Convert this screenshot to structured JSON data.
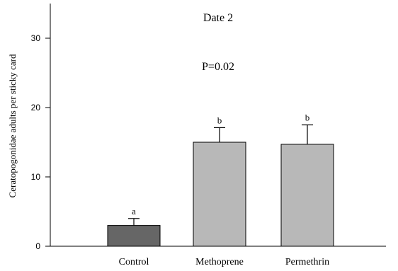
{
  "chart_data": {
    "type": "bar",
    "title": "Date 2",
    "annotation": "P=0.02",
    "xlabel": "",
    "ylabel": "Ceratopogonidae adults per sticky card",
    "ylim": [
      0,
      35
    ],
    "yticks": [
      0,
      10,
      20,
      30
    ],
    "categories": [
      "Control",
      "Methoprene",
      "Permethrin"
    ],
    "values": [
      3.0,
      15.0,
      14.7
    ],
    "error_upper": [
      1.0,
      2.1,
      2.8
    ],
    "significance_letters": [
      "a",
      "b",
      "b"
    ],
    "bar_colors": [
      "#666666",
      "#b8b8b8",
      "#b8b8b8"
    ],
    "grid": false,
    "legend": "none"
  }
}
